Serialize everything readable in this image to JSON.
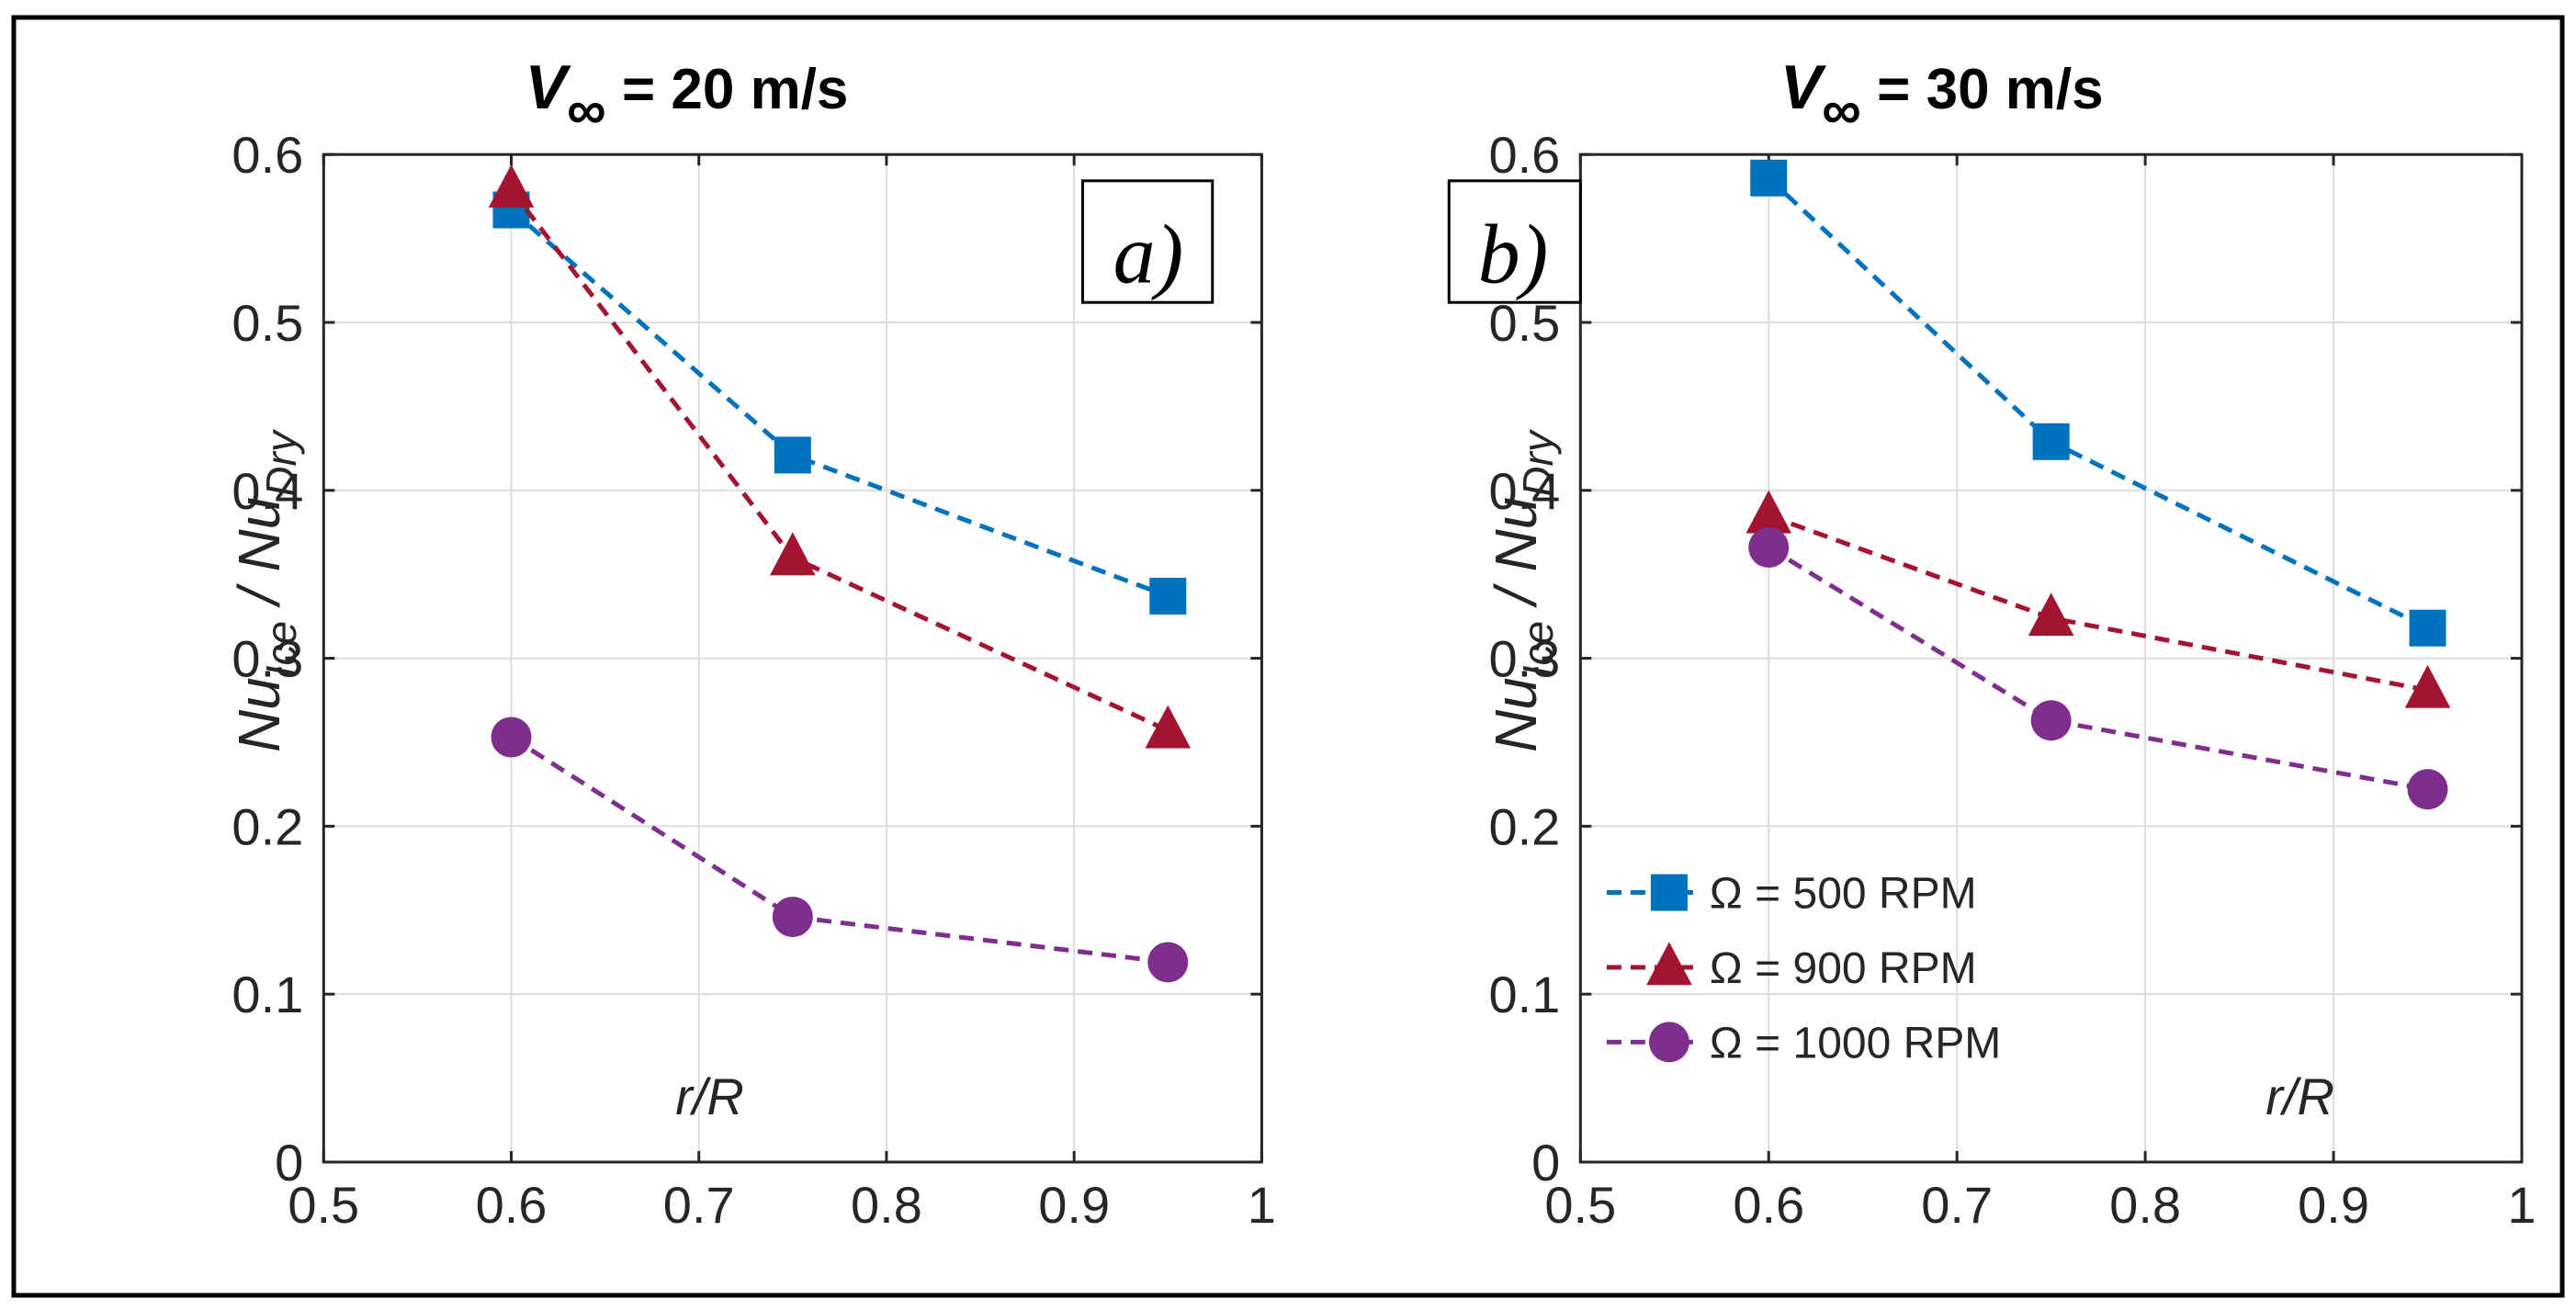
{
  "chart_data": [
    {
      "type": "line",
      "title_var": "V",
      "title_sub": "∞",
      "title_rest": " = 20 m/s",
      "panel_label": "a)",
      "xlabel": "r/R",
      "ylabel_main1": "Nu",
      "ylabel_sub1": "Ice",
      "ylabel_sep": " / ",
      "ylabel_main2": "Nu",
      "ylabel_sub2": "Dry",
      "xlim": [
        0.5,
        1
      ],
      "ylim": [
        0,
        0.6
      ],
      "xticks": [
        "0.5",
        "0.6",
        "0.7",
        "0.8",
        "0.9",
        "1"
      ],
      "yticks": [
        "0",
        "0.1",
        "0.2",
        "0.3",
        "0.4",
        "0.5",
        "0.6"
      ],
      "grid": true,
      "x": [
        0.6,
        0.75,
        0.95
      ],
      "series": [
        {
          "name": "Ω = 500 RPM",
          "marker": "square",
          "color": "#0072BD",
          "values": [
            0.567,
            0.421,
            0.337
          ]
        },
        {
          "name": "Ω = 900 RPM",
          "marker": "triangle",
          "color": "#A2142F",
          "values": [
            0.579,
            0.36,
            0.257
          ]
        },
        {
          "name": "Ω = 1000 RPM",
          "marker": "circle",
          "color": "#7E2F8E",
          "values": [
            0.253,
            0.146,
            0.119
          ]
        }
      ]
    },
    {
      "type": "line",
      "title_var": "V",
      "title_sub": "∞",
      "title_rest": " = 30 m/s",
      "panel_label": "b)",
      "xlabel": "r/R",
      "ylabel_main1": "Nu",
      "ylabel_sub1": "Ice",
      "ylabel_sep": " / ",
      "ylabel_main2": "Nu",
      "ylabel_sub2": "Dry",
      "xlim": [
        0.5,
        1
      ],
      "ylim": [
        0,
        0.6
      ],
      "xticks": [
        "0.5",
        "0.6",
        "0.7",
        "0.8",
        "0.9",
        "1"
      ],
      "yticks": [
        "0",
        "0.1",
        "0.2",
        "0.3",
        "0.4",
        "0.5",
        "0.6"
      ],
      "grid": true,
      "legend_position": "bottom-left",
      "x": [
        0.6,
        0.75,
        0.95
      ],
      "series": [
        {
          "name": "Ω = 500 RPM",
          "marker": "square",
          "color": "#0072BD",
          "values": [
            0.586,
            0.429,
            0.318
          ]
        },
        {
          "name": "Ω = 900 RPM",
          "marker": "triangle",
          "color": "#A2142F",
          "values": [
            0.385,
            0.324,
            0.281
          ]
        },
        {
          "name": "Ω = 1000 RPM",
          "marker": "circle",
          "color": "#7E2F8E",
          "values": [
            0.366,
            0.263,
            0.222
          ]
        }
      ]
    }
  ]
}
